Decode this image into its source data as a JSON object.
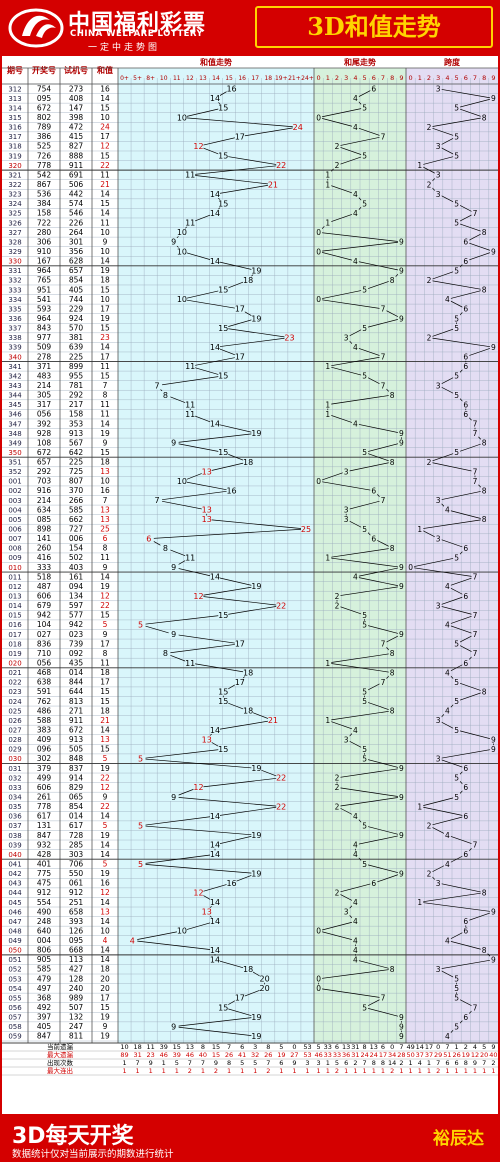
{
  "header": {
    "brand_cn": "中国福利彩票",
    "brand_en": "CHINA WELFARE LOTTERY",
    "slogan": "一定中走势图",
    "title": "3D和值走势"
  },
  "footer": {
    "title": "3D每天开奖",
    "note": "数据统计仅对当前展示的期数进行统计",
    "author": "裕辰达"
  },
  "columns": {
    "period": "期号",
    "draw": "开奖号",
    "trial": "试机号",
    "sum": "和值",
    "sum_trend": "和值走势",
    "tail_trend": "和尾走势",
    "span": "跨度"
  },
  "sum_header_labels": [
    "0+",
    "5+",
    "8+",
    "10",
    "11",
    "12",
    "13",
    "14",
    "15",
    "16",
    "17",
    "18",
    "19+",
    "21+",
    "24+"
  ],
  "digit_labels": [
    "0",
    "1",
    "2",
    "3",
    "4",
    "5",
    "6",
    "7",
    "8",
    "9"
  ],
  "stats": {
    "labels": [
      "当前遗漏",
      "最大遗漏",
      "出现次数",
      "最大连出"
    ],
    "sum": [
      [
        "10",
        "18",
        "11",
        "39",
        "15",
        "13",
        "8",
        "15",
        "7",
        "6",
        "3",
        "8",
        "5",
        "0",
        "53"
      ],
      [
        "89",
        "31",
        "23",
        "46",
        "39",
        "46",
        "40",
        "15",
        "26",
        "41",
        "32",
        "26",
        "19",
        "27",
        "53"
      ],
      [
        "1",
        "7",
        "9",
        "1",
        "5",
        "7",
        "7",
        "9",
        "8",
        "5",
        "5",
        "7",
        "6",
        "9",
        "3"
      ],
      [
        "1",
        "1",
        "1",
        "1",
        "1",
        "2",
        "1",
        "2",
        "1",
        "1",
        "1",
        "2",
        "1",
        "1",
        "1"
      ]
    ],
    "tail": [
      [
        "5",
        "33",
        "6",
        "13",
        "31",
        "8",
        "13",
        "6",
        "0",
        "7"
      ],
      [
        "46",
        "33",
        "33",
        "36",
        "31",
        "24",
        "24",
        "17",
        "34",
        "28"
      ],
      [
        "3",
        "1",
        "5",
        "6",
        "2",
        "7",
        "8",
        "8",
        "14",
        "2"
      ],
      [
        "1",
        "1",
        "2",
        "1",
        "1",
        "1",
        "1",
        "1",
        "2",
        "1"
      ]
    ],
    "span": [
      [
        "49",
        "14",
        "17",
        "0",
        "7",
        "1",
        "2",
        "4",
        "5",
        "9"
      ],
      [
        "50",
        "37",
        "37",
        "29",
        "51",
        "26",
        "19",
        "12",
        "20",
        "40"
      ],
      [
        "1",
        "4",
        "1",
        "7",
        "6",
        "6",
        "8",
        "9",
        "7",
        "2"
      ],
      [
        "1",
        "1",
        "1",
        "2",
        "1",
        "1",
        "1",
        "1",
        "1",
        "1"
      ]
    ]
  },
  "chart_data": {
    "type": "table",
    "columns": [
      "期号",
      "开奖号",
      "试机号",
      "和值",
      "和尾",
      "跨度"
    ],
    "rows": [
      [
        "312",
        "754",
        "273",
        "16",
        "6",
        "3"
      ],
      [
        "313",
        "095",
        "408",
        "14",
        "4",
        "9"
      ],
      [
        "314",
        "672",
        "147",
        "15",
        "5",
        "5"
      ],
      [
        "315",
        "802",
        "398",
        "10",
        "0",
        "8"
      ],
      [
        "316",
        "789",
        "472",
        "24",
        "4",
        "2"
      ],
      [
        "317",
        "386",
        "415",
        "17",
        "7",
        "5"
      ],
      [
        "318",
        "525",
        "827",
        "12",
        "2",
        "3"
      ],
      [
        "319",
        "726",
        "888",
        "15",
        "5",
        "5"
      ],
      [
        "320",
        "778",
        "911",
        "22",
        "2",
        "1"
      ],
      [
        "321",
        "542",
        "691",
        "11",
        "1",
        "3"
      ],
      [
        "322",
        "867",
        "506",
        "21",
        "1",
        "2"
      ],
      [
        "323",
        "536",
        "442",
        "14",
        "4",
        "3"
      ],
      [
        "324",
        "384",
        "574",
        "15",
        "5",
        "5"
      ],
      [
        "325",
        "158",
        "546",
        "14",
        "4",
        "7"
      ],
      [
        "326",
        "722",
        "226",
        "11",
        "1",
        "5"
      ],
      [
        "327",
        "280",
        "264",
        "10",
        "0",
        "8"
      ],
      [
        "328",
        "306",
        "301",
        "9",
        "9",
        "6"
      ],
      [
        "329",
        "910",
        "356",
        "10",
        "0",
        "9"
      ],
      [
        "330",
        "167",
        "628",
        "14",
        "4",
        "6"
      ],
      [
        "331",
        "964",
        "657",
        "19",
        "9",
        "5"
      ],
      [
        "332",
        "765",
        "854",
        "18",
        "8",
        "2"
      ],
      [
        "333",
        "951",
        "405",
        "15",
        "5",
        "8"
      ],
      [
        "334",
        "541",
        "744",
        "10",
        "0",
        "4"
      ],
      [
        "335",
        "593",
        "229",
        "17",
        "7",
        "6"
      ],
      [
        "336",
        "964",
        "924",
        "19",
        "9",
        "5"
      ],
      [
        "337",
        "843",
        "570",
        "15",
        "5",
        "5"
      ],
      [
        "338",
        "977",
        "381",
        "23",
        "3",
        "2"
      ],
      [
        "339",
        "509",
        "639",
        "14",
        "4",
        "9"
      ],
      [
        "340",
        "278",
        "225",
        "17",
        "7",
        "6"
      ],
      [
        "341",
        "371",
        "899",
        "11",
        "1",
        "6"
      ],
      [
        "342",
        "483",
        "955",
        "15",
        "5",
        "5"
      ],
      [
        "343",
        "214",
        "781",
        "7",
        "7",
        "3"
      ],
      [
        "344",
        "305",
        "292",
        "8",
        "8",
        "5"
      ],
      [
        "345",
        "317",
        "217",
        "11",
        "1",
        "6"
      ],
      [
        "346",
        "056",
        "158",
        "11",
        "1",
        "6"
      ],
      [
        "347",
        "392",
        "353",
        "14",
        "4",
        "7"
      ],
      [
        "348",
        "928",
        "913",
        "19",
        "9",
        "7"
      ],
      [
        "349",
        "108",
        "567",
        "9",
        "9",
        "8"
      ],
      [
        "350",
        "672",
        "642",
        "15",
        "5",
        "5"
      ],
      [
        "351",
        "657",
        "225",
        "18",
        "8",
        "2"
      ],
      [
        "352",
        "292",
        "725",
        "13",
        "3",
        "7"
      ],
      [
        "001",
        "703",
        "807",
        "10",
        "0",
        "7"
      ],
      [
        "002",
        "916",
        "370",
        "16",
        "6",
        "8"
      ],
      [
        "003",
        "214",
        "266",
        "7",
        "7",
        "3"
      ],
      [
        "004",
        "634",
        "585",
        "13",
        "3",
        "4"
      ],
      [
        "005",
        "085",
        "662",
        "13",
        "3",
        "8"
      ],
      [
        "006",
        "898",
        "727",
        "25",
        "5",
        "1"
      ],
      [
        "007",
        "141",
        "006",
        "6",
        "6",
        "3"
      ],
      [
        "008",
        "260",
        "154",
        "8",
        "8",
        "6"
      ],
      [
        "009",
        "416",
        "502",
        "11",
        "1",
        "5"
      ],
      [
        "010",
        "333",
        "403",
        "9",
        "9",
        "0"
      ],
      [
        "011",
        "518",
        "161",
        "14",
        "4",
        "7"
      ],
      [
        "012",
        "487",
        "094",
        "19",
        "9",
        "4"
      ],
      [
        "013",
        "606",
        "134",
        "12",
        "2",
        "6"
      ],
      [
        "014",
        "679",
        "597",
        "22",
        "2",
        "3"
      ],
      [
        "015",
        "942",
        "577",
        "15",
        "5",
        "7"
      ],
      [
        "016",
        "104",
        "942",
        "5",
        "5",
        "4"
      ],
      [
        "017",
        "027",
        "023",
        "9",
        "9",
        "7"
      ],
      [
        "018",
        "836",
        "739",
        "17",
        "7",
        "5"
      ],
      [
        "019",
        "710",
        "092",
        "8",
        "8",
        "7"
      ],
      [
        "020",
        "056",
        "435",
        "11",
        "1",
        "6"
      ],
      [
        "021",
        "468",
        "014",
        "18",
        "8",
        "4"
      ],
      [
        "022",
        "638",
        "844",
        "17",
        "7",
        "5"
      ],
      [
        "023",
        "591",
        "644",
        "15",
        "5",
        "8"
      ],
      [
        "024",
        "762",
        "813",
        "15",
        "5",
        "5"
      ],
      [
        "025",
        "486",
        "271",
        "18",
        "8",
        "4"
      ],
      [
        "026",
        "588",
        "911",
        "21",
        "1",
        "3"
      ],
      [
        "027",
        "383",
        "672",
        "14",
        "4",
        "5"
      ],
      [
        "028",
        "409",
        "913",
        "13",
        "3",
        "9"
      ],
      [
        "029",
        "096",
        "505",
        "15",
        "5",
        "9"
      ],
      [
        "030",
        "302",
        "848",
        "5",
        "5",
        "3"
      ],
      [
        "031",
        "379",
        "837",
        "19",
        "9",
        "6"
      ],
      [
        "032",
        "499",
        "914",
        "22",
        "2",
        "5"
      ],
      [
        "033",
        "606",
        "829",
        "12",
        "2",
        "6"
      ],
      [
        "034",
        "261",
        "065",
        "9",
        "9",
        "5"
      ],
      [
        "035",
        "778",
        "854",
        "22",
        "2",
        "1"
      ],
      [
        "036",
        "617",
        "014",
        "14",
        "4",
        "6"
      ],
      [
        "037",
        "131",
        "617",
        "5",
        "5",
        "2"
      ],
      [
        "038",
        "847",
        "728",
        "19",
        "9",
        "4"
      ],
      [
        "039",
        "932",
        "285",
        "14",
        "4",
        "7"
      ],
      [
        "040",
        "428",
        "303",
        "14",
        "4",
        "6"
      ],
      [
        "041",
        "401",
        "706",
        "5",
        "5",
        "4"
      ],
      [
        "042",
        "775",
        "550",
        "19",
        "9",
        "2"
      ],
      [
        "043",
        "475",
        "061",
        "16",
        "6",
        "3"
      ],
      [
        "044",
        "912",
        "912",
        "12",
        "2",
        "8"
      ],
      [
        "045",
        "554",
        "251",
        "14",
        "4",
        "1"
      ],
      [
        "046",
        "490",
        "658",
        "13",
        "3",
        "9"
      ],
      [
        "047",
        "248",
        "393",
        "14",
        "4",
        "6"
      ],
      [
        "048",
        "640",
        "126",
        "10",
        "0",
        "6"
      ],
      [
        "049",
        "004",
        "095",
        "4",
        "4",
        "4"
      ],
      [
        "050",
        "806",
        "668",
        "14",
        "4",
        "8"
      ],
      [
        "051",
        "905",
        "113",
        "14",
        "4",
        "9"
      ],
      [
        "052",
        "585",
        "427",
        "18",
        "8",
        "3"
      ],
      [
        "053",
        "479",
        "128",
        "20",
        "0",
        "5"
      ],
      [
        "054",
        "497",
        "240",
        "20",
        "0",
        "5"
      ],
      [
        "055",
        "368",
        "989",
        "17",
        "7",
        "5"
      ],
      [
        "056",
        "492",
        "507",
        "15",
        "5",
        "7"
      ],
      [
        "057",
        "397",
        "132",
        "19",
        "9",
        "6"
      ],
      [
        "058",
        "405",
        "247",
        "9",
        "9",
        "5"
      ],
      [
        "059",
        "847",
        "811",
        "19",
        "9",
        "4"
      ]
    ]
  },
  "red_sums": [
    "12",
    "22",
    "11",
    "23",
    "13",
    "25",
    "6",
    "21",
    "22",
    "22",
    "5",
    "19",
    "14",
    "18",
    "4"
  ]
}
